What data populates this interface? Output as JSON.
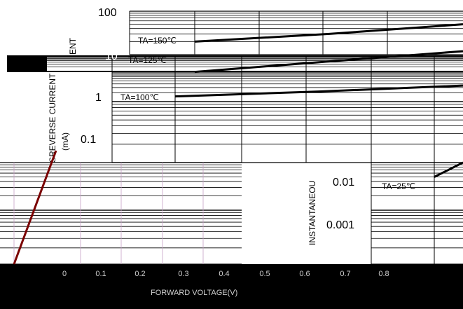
{
  "chart_data": [
    {
      "type": "line",
      "title": "",
      "ylabel_parts": [
        "INSTANTANEOU",
        "SREVERSE CURRENT",
        "(mA)",
        "ENT"
      ],
      "y_scale": "log",
      "ylim": [
        0.0001,
        100
      ],
      "y_ticks": [
        "100",
        "10",
        "1",
        "0.1",
        "0.01",
        "0.001"
      ],
      "series": [
        {
          "name": "TA=150℃",
          "values": [
            20,
            30,
            50
          ]
        },
        {
          "name": "TA=125℃",
          "values": [
            4,
            7,
            12
          ]
        },
        {
          "name": "TA=100℃",
          "values": [
            1.5,
            2.2,
            3.5
          ]
        },
        {
          "name": "TA=25℃",
          "values": [
            0.005,
            0.007,
            0.01
          ]
        }
      ]
    },
    {
      "type": "line",
      "title": "",
      "xlabel": "FORWARD VOLTAGE(V)",
      "x_ticks": [
        "0",
        "0.1",
        "0.2",
        "0.3",
        "0.4",
        "0.5",
        "0.6",
        "0.7",
        "0.8"
      ],
      "series": [
        {
          "values": [
            0.0001,
            1
          ]
        }
      ]
    }
  ]
}
